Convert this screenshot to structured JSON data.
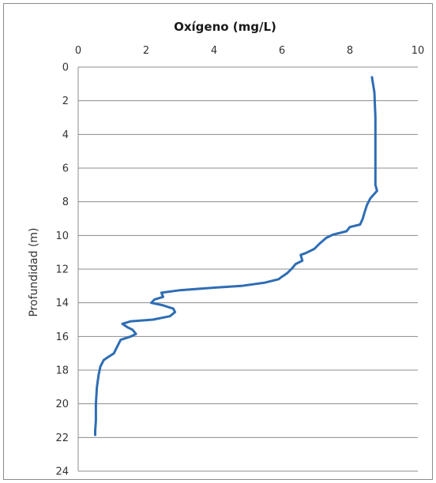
{
  "chart_data": {
    "type": "line",
    "title": "Oxígeno (mg/L)",
    "xlabel": "Oxígeno (mg/L)",
    "ylabel": "Profundidad (m)",
    "x_axis_position": "top",
    "y_axis_inverted": true,
    "xlim": [
      0,
      10
    ],
    "ylim": [
      0,
      24
    ],
    "x_ticks": [
      "0",
      "2",
      "4",
      "6",
      "8",
      "10"
    ],
    "y_ticks": [
      "0",
      "2",
      "4",
      "6",
      "8",
      "10",
      "12",
      "14",
      "16",
      "18",
      "20",
      "22",
      "24"
    ],
    "grid": "horizontal",
    "legend": "none",
    "series": [
      {
        "color": "#2e6db4",
        "points": [
          [
            8.65,
            0.6
          ],
          [
            8.72,
            1.5
          ],
          [
            8.75,
            3.0
          ],
          [
            8.75,
            5.0
          ],
          [
            8.75,
            7.0
          ],
          [
            8.8,
            7.35
          ],
          [
            8.6,
            7.8
          ],
          [
            8.5,
            8.2
          ],
          [
            8.42,
            8.7
          ],
          [
            8.38,
            9.0
          ],
          [
            8.3,
            9.35
          ],
          [
            8.0,
            9.5
          ],
          [
            7.9,
            9.75
          ],
          [
            7.5,
            9.95
          ],
          [
            7.3,
            10.15
          ],
          [
            7.1,
            10.5
          ],
          [
            6.95,
            10.8
          ],
          [
            6.7,
            11.05
          ],
          [
            6.55,
            11.15
          ],
          [
            6.6,
            11.5
          ],
          [
            6.4,
            11.7
          ],
          [
            6.3,
            11.95
          ],
          [
            6.15,
            12.25
          ],
          [
            6.0,
            12.45
          ],
          [
            5.9,
            12.6
          ],
          [
            5.5,
            12.8
          ],
          [
            4.8,
            13.0
          ],
          [
            4.0,
            13.1
          ],
          [
            3.0,
            13.25
          ],
          [
            2.45,
            13.4
          ],
          [
            2.5,
            13.65
          ],
          [
            2.25,
            13.8
          ],
          [
            2.15,
            14.0
          ],
          [
            2.5,
            14.15
          ],
          [
            2.8,
            14.35
          ],
          [
            2.85,
            14.55
          ],
          [
            2.7,
            14.8
          ],
          [
            2.2,
            15.0
          ],
          [
            1.55,
            15.1
          ],
          [
            1.3,
            15.25
          ],
          [
            1.45,
            15.45
          ],
          [
            1.6,
            15.6
          ],
          [
            1.7,
            15.85
          ],
          [
            1.55,
            16.0
          ],
          [
            1.25,
            16.2
          ],
          [
            1.15,
            16.6
          ],
          [
            1.05,
            17.0
          ],
          [
            0.9,
            17.2
          ],
          [
            0.75,
            17.4
          ],
          [
            0.65,
            17.8
          ],
          [
            0.6,
            18.3
          ],
          [
            0.55,
            19.0
          ],
          [
            0.52,
            20.0
          ],
          [
            0.52,
            21.0
          ],
          [
            0.5,
            21.6
          ],
          [
            0.5,
            21.85
          ]
        ]
      }
    ]
  }
}
